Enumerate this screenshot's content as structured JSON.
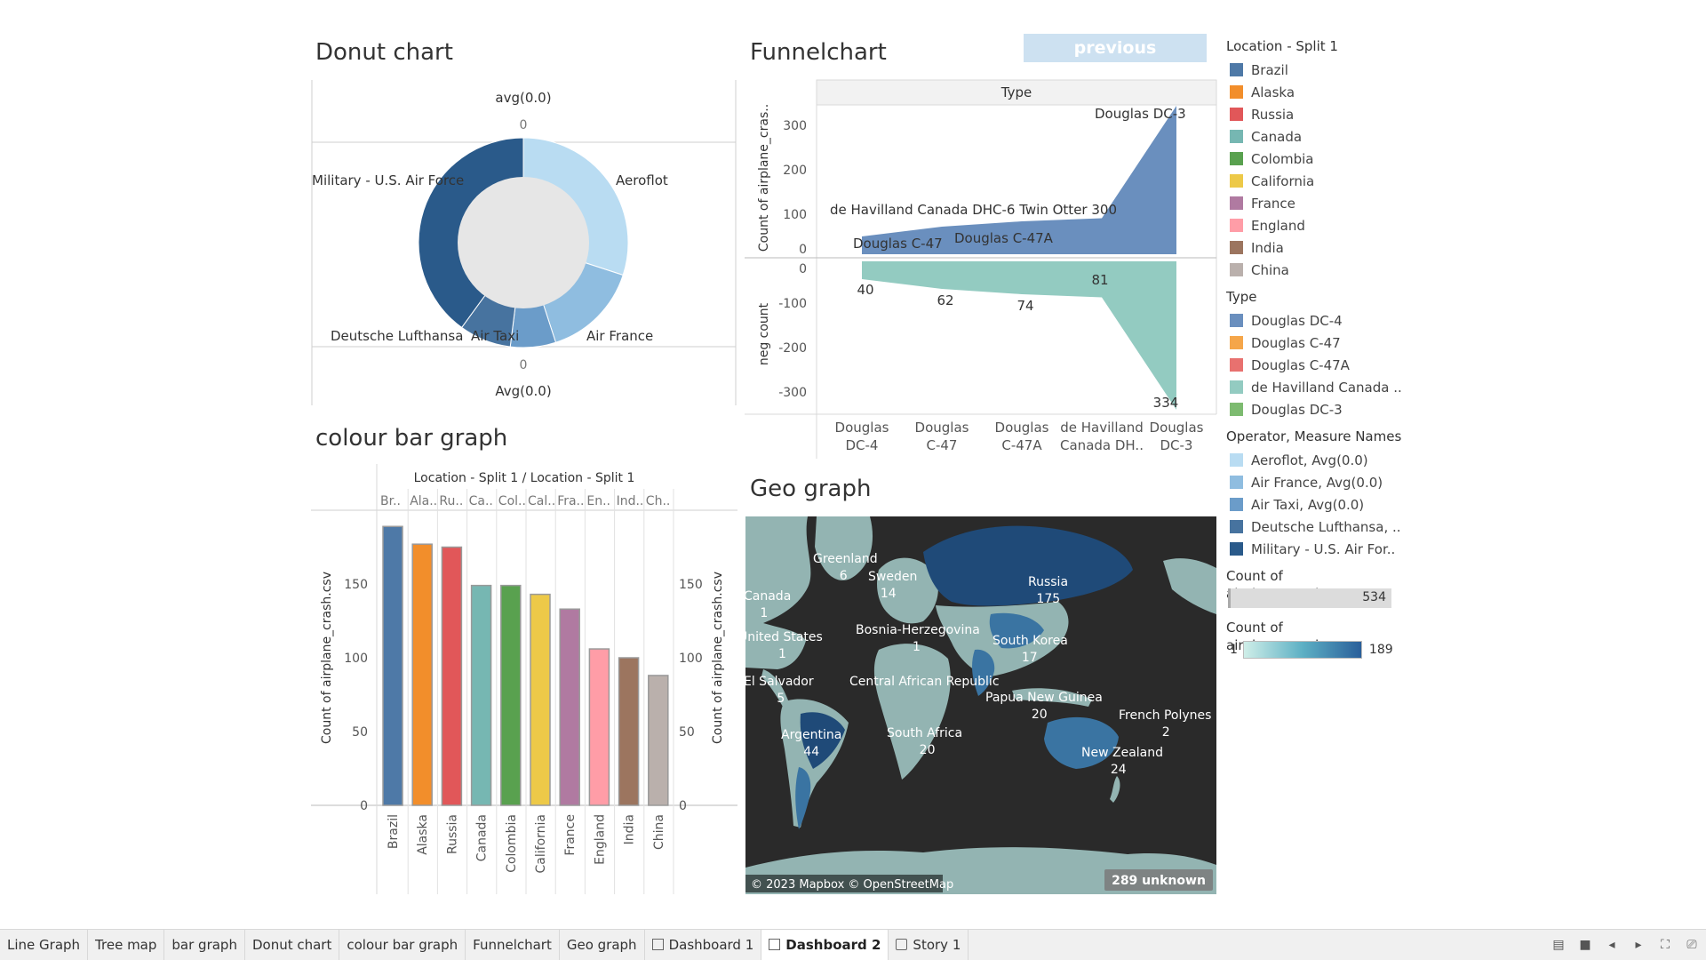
{
  "donut": {
    "title": "Donut chart",
    "top_label": "avg(0.0)",
    "bottom_label": "Avg(0.0)",
    "top_tick": "0",
    "bottom_tick": "0",
    "slices": [
      {
        "label": "Aeroflot",
        "color": "#b9dcf2",
        "value": 30
      },
      {
        "label": "Air France",
        "color": "#8fbde0",
        "value": 15
      },
      {
        "label": "Air Taxi",
        "color": "#6b9cc9",
        "value": 7
      },
      {
        "label": "Deutsche Lufthansa",
        "color": "#47739f",
        "value": 8
      },
      {
        "label": "Military - U.S. Air Force",
        "color": "#2a5a8a",
        "value": 40
      }
    ]
  },
  "funnel": {
    "title": "Funnelchart",
    "header": "Type",
    "ylabel_top": "Count of airplane_cras..",
    "ylabel_bottom": "neg count",
    "yticks_top": [
      "300",
      "200",
      "100",
      "0"
    ],
    "yticks_bottom": [
      "0",
      "-100",
      "-200",
      "-300"
    ],
    "top_color": "#6a8fbe",
    "bottom_color": "#93cbc1",
    "categories": [
      "Douglas DC-4",
      "Douglas C-47",
      "Douglas C-47A",
      "de Havilland Canada DH..",
      "Douglas DC-3"
    ],
    "xtick_lines": [
      [
        "Douglas",
        "DC-4"
      ],
      [
        "Douglas",
        "C-47"
      ],
      [
        "Douglas",
        "C-47A"
      ],
      [
        "de Havilland",
        "Canada DH.."
      ],
      [
        "Douglas",
        "DC-3"
      ]
    ],
    "values": [
      40,
      62,
      74,
      81,
      334
    ],
    "value_labels": [
      "40",
      "62",
      "74",
      "81",
      "334"
    ],
    "top_labels": [
      "Douglas C-47",
      "Douglas C-47A",
      "de Havilland Canada DHC-6 Twin Otter 300",
      "Douglas DC-3"
    ]
  },
  "bar": {
    "title": "colour bar graph",
    "header": "Location - Split 1  /  Location - Split 1",
    "ylabel": "Count of airplane_crash.csv",
    "yticks": [
      "150",
      "100",
      "50",
      "0"
    ],
    "short_labels": [
      "Br..",
      "Ala..",
      "Ru..",
      "Ca..",
      "Col..",
      "Cal..",
      "Fra..",
      "En..",
      "Ind..",
      "Ch.."
    ],
    "categories": [
      "Brazil",
      "Alaska",
      "Russia",
      "Canada",
      "Colombia",
      "California",
      "France",
      "England",
      "India",
      "China"
    ],
    "values": [
      189,
      177,
      175,
      149,
      149,
      143,
      133,
      106,
      100,
      88
    ],
    "colors": [
      "#4e79a7",
      "#f28e2b",
      "#e15759",
      "#76b7b2",
      "#59a14f",
      "#edc948",
      "#b07aa1",
      "#ff9da7",
      "#9c755f",
      "#bab0ac"
    ]
  },
  "geo": {
    "title": "Geo graph",
    "labels": [
      {
        "name": "Greenland",
        "value": "6"
      },
      {
        "name": "Sweden",
        "value": "14"
      },
      {
        "name": "Russia",
        "value": "175"
      },
      {
        "name": "Canada",
        "value": "1"
      },
      {
        "name": "United States",
        "value": "1"
      },
      {
        "name": "Bosnia-Herzegovina",
        "value": "1"
      },
      {
        "name": "South Korea",
        "value": "17"
      },
      {
        "name": "El Salvador",
        "value": "5"
      },
      {
        "name": "Central African Republic",
        "value": ""
      },
      {
        "name": "Papua New Guinea",
        "value": "20"
      },
      {
        "name": "French Polynes",
        "value": "2"
      },
      {
        "name": "Argentina",
        "value": "44"
      },
      {
        "name": "South Africa",
        "value": "20"
      },
      {
        "name": "New Zealand",
        "value": "24"
      }
    ],
    "attribution": "© 2023 Mapbox © OpenStreetMap",
    "unknown": "289 unknown"
  },
  "buttons": {
    "previous": "previous"
  },
  "legends": {
    "location_title": "Location - Split 1",
    "location_items": [
      {
        "label": "Brazil",
        "color": "#4e79a7"
      },
      {
        "label": "Alaska",
        "color": "#f28e2b"
      },
      {
        "label": "Russia",
        "color": "#e15759"
      },
      {
        "label": "Canada",
        "color": "#76b7b2"
      },
      {
        "label": "Colombia",
        "color": "#59a14f"
      },
      {
        "label": "California",
        "color": "#edc948"
      },
      {
        "label": "France",
        "color": "#b07aa1"
      },
      {
        "label": "England",
        "color": "#ff9da7"
      },
      {
        "label": "India",
        "color": "#9c755f"
      },
      {
        "label": "China",
        "color": "#bab0ac"
      }
    ],
    "type_title": "Type",
    "type_items": [
      {
        "label": "Douglas DC-4",
        "color": "#6a8fbe"
      },
      {
        "label": "Douglas C-47",
        "color": "#f5a64a"
      },
      {
        "label": "Douglas C-47A",
        "color": "#e8716f"
      },
      {
        "label": "de Havilland Canada ..",
        "color": "#93cbc1"
      },
      {
        "label": "Douglas DC-3",
        "color": "#7dbb70"
      }
    ],
    "operator_title": "Operator, Measure Names",
    "operator_items": [
      {
        "label": "Aeroflot, Avg(0.0)",
        "color": "#b9dcf2"
      },
      {
        "label": "Air France, Avg(0.0)",
        "color": "#8fbde0"
      },
      {
        "label": "Air Taxi, Avg(0.0)",
        "color": "#6b9cc9"
      },
      {
        "label": "Deutsche Lufthansa, ..",
        "color": "#47739f"
      },
      {
        "label": "Military - U.S. Air For..",
        "color": "#2a5a8a"
      }
    ],
    "count_title_1": "Count of airplane_crash.c..",
    "count_value_1": "534",
    "count_title_2": "Count of airplane_crash.c..",
    "count_min": "1",
    "count_max": "189"
  },
  "tabs": [
    {
      "label": "Line Graph",
      "icon": ""
    },
    {
      "label": "Tree map",
      "icon": ""
    },
    {
      "label": "bar graph",
      "icon": ""
    },
    {
      "label": "Donut chart",
      "icon": ""
    },
    {
      "label": "colour bar graph",
      "icon": ""
    },
    {
      "label": "Funnelchart",
      "icon": ""
    },
    {
      "label": "Geo graph",
      "icon": ""
    },
    {
      "label": "Dashboard 1",
      "icon": "dashboard-icon"
    },
    {
      "label": "Dashboard 2",
      "icon": "dashboard-icon"
    },
    {
      "label": "Story 1",
      "icon": "story-icon"
    }
  ],
  "active_tab": "Dashboard 2",
  "chart_data": [
    {
      "type": "pie",
      "title": "Donut chart",
      "labels": [
        "Aeroflot",
        "Air France",
        "Air Taxi",
        "Deutsche Lufthansa",
        "Military - U.S. Air Force"
      ],
      "values": [
        30,
        15,
        7,
        8,
        40
      ]
    },
    {
      "type": "area",
      "title": "Funnelchart",
      "categories": [
        "Douglas DC-4",
        "Douglas C-47",
        "Douglas C-47A",
        "de Havilland Canada DH..",
        "Douglas DC-3"
      ],
      "series": [
        {
          "name": "Count of airplane_cras..",
          "values": [
            40,
            62,
            74,
            81,
            334
          ]
        },
        {
          "name": "neg count",
          "values": [
            -40,
            -62,
            -74,
            -81,
            -334
          ]
        }
      ],
      "ylim": [
        -340,
        340
      ]
    },
    {
      "type": "bar",
      "title": "colour bar graph",
      "categories": [
        "Brazil",
        "Alaska",
        "Russia",
        "Canada",
        "Colombia",
        "California",
        "France",
        "England",
        "India",
        "China"
      ],
      "values": [
        189,
        177,
        175,
        149,
        149,
        143,
        133,
        106,
        100,
        88
      ],
      "ylabel": "Count of airplane_crash.csv",
      "ylim": [
        0,
        195
      ]
    }
  ]
}
